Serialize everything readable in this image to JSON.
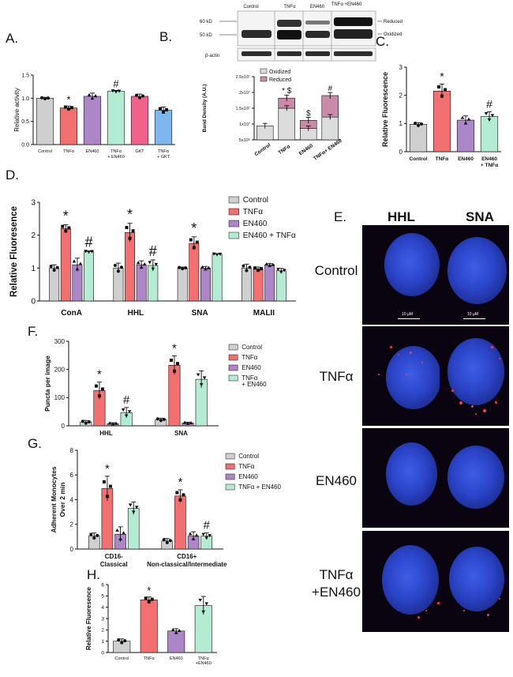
{
  "colors": {
    "control": "#cfcfcf",
    "tnfa": "#f2706f",
    "en460": "#ad86c7",
    "combo": "#b4ecd3",
    "gkt": "#f0618c",
    "tnfa_gkt": "#7eb7ee",
    "oxidized": "#dcdcdc",
    "reduced": "#c98ba7"
  },
  "panel_letters": [
    "A.",
    "B.",
    "C.",
    "D.",
    "E.",
    "F.",
    "G.",
    "H."
  ],
  "blot": {
    "lanes": [
      "Control",
      "TNFα",
      "EN460",
      "TNFα +EN460"
    ],
    "mw": [
      "60 kD",
      "50 kD"
    ],
    "bands": [
      "Reduced",
      "Oxidized"
    ],
    "loading": "β-actin"
  },
  "microscopy": {
    "columns": [
      "HHL",
      "SNA"
    ],
    "rows": [
      "Control",
      "TNFα",
      "EN460",
      "TNFα +EN460"
    ],
    "scale_text": "10 µM"
  },
  "chart_data": [
    {
      "id": "A",
      "type": "bar",
      "ylabel": "Relative activity",
      "ylim": [
        0,
        1.5
      ],
      "yticks": [
        "0.0",
        "0.5",
        "1.0",
        "1.5"
      ],
      "categories": [
        "Control",
        "TNFα",
        "EN460",
        "TNFα + EN460",
        "GKT",
        "TNFα + GKT"
      ],
      "values": [
        1.0,
        0.79,
        1.04,
        1.15,
        1.04,
        0.74
      ],
      "errors": [
        0.02,
        0.04,
        0.07,
        0.02,
        0.05,
        0.07
      ],
      "annotations": [
        "",
        "*",
        "",
        "#",
        "",
        ""
      ]
    },
    {
      "id": "B",
      "type": "bar",
      "stacked": true,
      "ylabel": "Band Density (A.U.)",
      "ylim": [
        0,
        25000000
      ],
      "yticks": [
        "5x10⁶",
        "1x10⁷",
        "1.5x10⁷",
        "2x10⁷",
        "2.5x10⁷"
      ],
      "categories": [
        "Control",
        "TNFα",
        "EN460",
        "TNFα+ EN460"
      ],
      "legend": [
        "Oxidized",
        "Reduced"
      ],
      "series": [
        {
          "name": "Oxidized",
          "values": [
            5500000,
            12500000,
            4500000,
            9000000
          ]
        },
        {
          "name": "Reduced",
          "values": [
            0,
            4000000,
            3200000,
            8500000
          ]
        }
      ],
      "annotations": [
        "",
        "* $",
        "$",
        "#"
      ]
    },
    {
      "id": "C",
      "type": "bar",
      "ylabel": "Relative Fluorescence",
      "ylim": [
        0,
        3
      ],
      "yticks": [
        "0",
        "1",
        "2",
        "3"
      ],
      "categories": [
        "Control",
        "TNFα",
        "EN460",
        "EN460 + TNFα"
      ],
      "values": [
        0.97,
        2.15,
        1.12,
        1.25
      ],
      "errors": [
        0.06,
        0.25,
        0.15,
        0.17
      ],
      "annotations": [
        "",
        "*",
        "",
        "#"
      ]
    },
    {
      "id": "D",
      "type": "bar",
      "ylabel": "Relative Fluoresence",
      "ylim": [
        0,
        3
      ],
      "yticks": [
        "0",
        "1",
        "2",
        "3"
      ],
      "categories": [
        "ConA",
        "HHL",
        "SNA",
        "MALII"
      ],
      "legend": [
        "Control",
        "TNFα",
        "EN460",
        "EN460 + TNFα"
      ],
      "series": [
        {
          "name": "Control",
          "values": [
            1.0,
            1.0,
            1.0,
            1.0
          ],
          "errors": [
            0.1,
            0.15,
            0.03,
            0.12
          ]
        },
        {
          "name": "TNFα",
          "values": [
            2.2,
            2.08,
            1.75,
            0.97
          ],
          "errors": [
            0.12,
            0.28,
            0.2,
            0.06
          ]
        },
        {
          "name": "EN460",
          "values": [
            1.1,
            1.1,
            1.0,
            1.1
          ],
          "errors": [
            0.2,
            0.12,
            0.05,
            0.04
          ]
        },
        {
          "name": "EN460 + TNFα",
          "values": [
            1.5,
            1.08,
            1.42,
            0.92
          ],
          "errors": [
            0.02,
            0.17,
            0.02,
            0.07
          ]
        }
      ],
      "annotations": [
        [
          "",
          "*",
          "",
          "#"
        ],
        [
          "",
          "*",
          "",
          "#"
        ],
        [
          "",
          "*",
          "",
          ""
        ],
        [
          "",
          "",
          "",
          ""
        ]
      ]
    },
    {
      "id": "F",
      "type": "bar",
      "ylabel": "Puncta per image",
      "ylim": [
        0,
        300
      ],
      "yticks": [
        "0",
        "100",
        "200",
        "300"
      ],
      "categories": [
        "HHL",
        "SNA"
      ],
      "legend": [
        "Control",
        "TNFα",
        "EN460",
        "TNFα + EN460"
      ],
      "series": [
        {
          "name": "Control",
          "values": [
            13,
            22
          ],
          "errors": [
            6,
            5
          ]
        },
        {
          "name": "TNFα",
          "values": [
            125,
            215
          ],
          "errors": [
            30,
            33
          ]
        },
        {
          "name": "EN460",
          "values": [
            8,
            10
          ],
          "errors": [
            3,
            3
          ]
        },
        {
          "name": "TNFα + EN460",
          "values": [
            47,
            165
          ],
          "errors": [
            18,
            30
          ]
        }
      ],
      "annotations": [
        [
          "",
          "*",
          "",
          "#"
        ],
        [
          "",
          "*",
          "",
          ""
        ]
      ]
    },
    {
      "id": "G",
      "type": "bar",
      "ylabel": "Adherent Monocytes Over 2 min",
      "ylim": [
        0,
        8
      ],
      "yticks": [
        "0",
        "2",
        "4",
        "6",
        "8"
      ],
      "categories": [
        "CD16- Classical",
        "CD16+ Non-classical/Intermediate"
      ],
      "legend": [
        "Control",
        "TNFα",
        "EN460",
        "TNFα + EN460"
      ],
      "series": [
        {
          "name": "Control",
          "values": [
            1.05,
            0.65
          ],
          "errors": [
            0.25,
            0.2
          ]
        },
        {
          "name": "TNFα",
          "values": [
            4.9,
            4.3
          ],
          "errors": [
            1.0,
            0.5
          ]
        },
        {
          "name": "EN460",
          "values": [
            1.2,
            1.05
          ],
          "errors": [
            0.6,
            0.35
          ]
        },
        {
          "name": "TNFα + EN460",
          "values": [
            3.3,
            1.05
          ],
          "errors": [
            0.5,
            0.25
          ]
        }
      ],
      "annotations": [
        [
          "",
          "*",
          "",
          ""
        ],
        [
          "",
          "*",
          "",
          "#"
        ]
      ]
    },
    {
      "id": "H",
      "type": "bar",
      "ylabel": "Relative Fluoresence",
      "ylim": [
        0,
        6
      ],
      "yticks": [
        "0",
        "1",
        "2",
        "3",
        "4",
        "5",
        "6"
      ],
      "categories": [
        "Control",
        "TNFα",
        "EN460",
        "TNFα +EN460"
      ],
      "values": [
        1.0,
        4.65,
        1.9,
        4.15
      ],
      "errors": [
        0.2,
        0.25,
        0.2,
        0.8
      ],
      "annotations": [
        "",
        "*",
        "",
        ""
      ]
    }
  ]
}
